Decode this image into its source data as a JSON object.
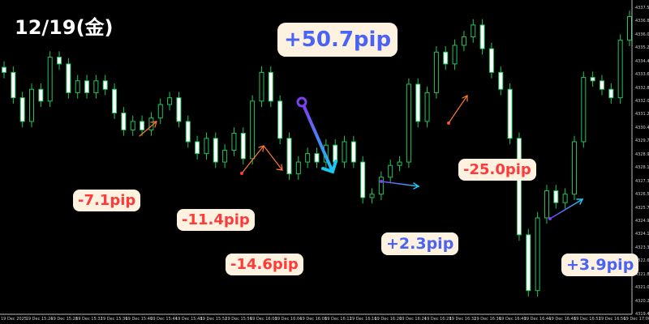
{
  "title": "12/19(金)",
  "chart_data": {
    "type": "candlestick",
    "title": "12/19(金)",
    "ylim": [
      4319.4,
      4337.5
    ],
    "grid": false,
    "y_ticks": [
      "4337.50",
      "4336.80",
      "4336.00",
      "4335.20",
      "4334.40",
      "4333.60",
      "4332.80",
      "4332.00",
      "4331.20",
      "4330.40",
      "4329.70",
      "4328.90",
      "4328.10",
      "4327.30",
      "4326.50",
      "4325.70",
      "4324.90",
      "4324.10",
      "4323.30",
      "4322.60",
      "4321.80",
      "4321.00",
      "4320.20",
      "4319.40"
    ],
    "x_ticks": [
      "19 Dec 2025",
      "19 Dec 15:24",
      "19 Dec 15:28",
      "19 Dec 15:32",
      "19 Dec 15:36",
      "19 Dec 15:40",
      "19 Dec 15:44",
      "19 Dec 15:48",
      "19 Dec 15:52",
      "19 Dec 15:56",
      "19 Dec 16:00",
      "19 Dec 16:04",
      "19 Dec 16:08",
      "19 Dec 16:12",
      "19 Dec 16:16",
      "19 Dec 16:20",
      "19 Dec 16:24",
      "19 Dec 16:28",
      "19 Dec 16:32",
      "19 Dec 16:36",
      "19 Dec 16:40",
      "19 Dec 16:44",
      "19 Dec 16:48",
      "19 Dec 16:52",
      "19 Dec 16:56",
      "19 Dec 17:00"
    ],
    "close": [
      4333.7,
      4332.2,
      4330.8,
      4332.7,
      4332.0,
      4334.6,
      4334.2,
      4332.5,
      4333.2,
      4332.5,
      4333.2,
      4332.7,
      4331.3,
      4330.3,
      4330.8,
      4330.3,
      4331.0,
      4331.8,
      4332.2,
      4330.8,
      4329.6,
      4328.9,
      4329.8,
      4328.4,
      4329.1,
      4330.1,
      4328.6,
      4332.0,
      4333.7,
      4332.0,
      4329.8,
      4327.7,
      4328.4,
      4328.9,
      4328.4,
      4329.4,
      4328.4,
      4329.6,
      4328.4,
      4326.3,
      4326.5,
      4327.5,
      4328.2,
      4328.4,
      4333.0,
      4330.8,
      4332.5,
      4334.9,
      4334.2,
      4335.3,
      4335.8,
      4336.5,
      4335.1,
      4333.7,
      4332.7,
      4329.8,
      4324.1,
      4320.8,
      4325.1,
      4326.7,
      4326.0,
      4326.5,
      4329.6,
      4333.4,
      4333.2,
      4332.7,
      4332.2,
      4335.6,
      4337.0
    ],
    "candle_color": "#22c55e",
    "annotations": [
      {
        "text": "+50.7pip",
        "color": "#4a63f5"
      },
      {
        "text": "-7.1pip",
        "color": "#ff3a3a"
      },
      {
        "text": "-11.4pip",
        "color": "#ff3a3a"
      },
      {
        "text": "-14.6pip",
        "color": "#ff3a3a"
      },
      {
        "text": "+2.3pip",
        "color": "#4a63f5"
      },
      {
        "text": "-25.0pip",
        "color": "#ff3a3a"
      },
      {
        "text": "+3.9pip",
        "color": "#4a63f5"
      }
    ]
  }
}
